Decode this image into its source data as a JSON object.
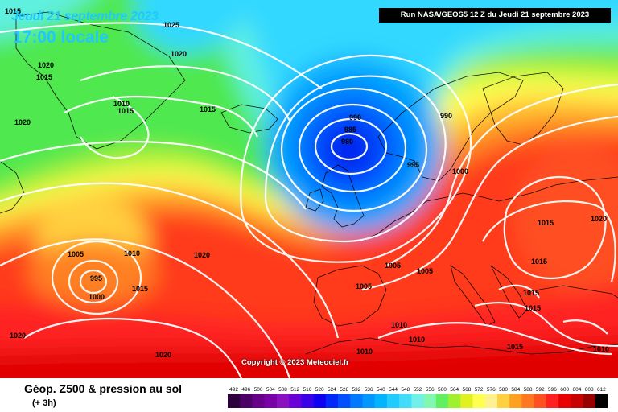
{
  "header": {
    "date": "Jeudi 21 septembre 2023",
    "time": "17:00 locale",
    "run": "Run NASA/GEOS5 12 Z du Jeudi 21 septembre 2023"
  },
  "copyright": "Copyright © 2023 Meteociel.fr",
  "legend": {
    "title": "Géop. Z500 & pression au sol",
    "subtitle": "(+ 3h)",
    "scale_values": [
      "492",
      "496",
      "500",
      "504",
      "508",
      "512",
      "516",
      "520",
      "524",
      "528",
      "532",
      "536",
      "540",
      "544",
      "548",
      "552",
      "556",
      "560",
      "564",
      "568",
      "572",
      "576",
      "580",
      "584",
      "588",
      "592",
      "596",
      "600",
      "604",
      "608",
      "612"
    ],
    "scale_colors": [
      "#2e003e",
      "#4b0066",
      "#66008a",
      "#7a00a8",
      "#8a10c0",
      "#6a00d8",
      "#3a00e8",
      "#1000f0",
      "#0028f8",
      "#0050ff",
      "#0078ff",
      "#0098ff",
      "#00b4ff",
      "#20ccff",
      "#40dcf8",
      "#70f0e8",
      "#80f8b0",
      "#60f060",
      "#a0f030",
      "#e0f020",
      "#ffff50",
      "#fff090",
      "#ffd040",
      "#ffa020",
      "#ff7820",
      "#ff5020",
      "#ff2020",
      "#e80000",
      "#c80000",
      "#980000",
      "#000000"
    ]
  },
  "isobar_labels": [
    {
      "text": "1015"
    },
    {
      "text": "1025"
    },
    {
      "text": "1020"
    },
    {
      "text": "1020"
    },
    {
      "text": "1015"
    },
    {
      "text": "1020"
    },
    {
      "text": "1010"
    },
    {
      "text": "1015"
    },
    {
      "text": "1015"
    },
    {
      "text": "990"
    },
    {
      "text": "985"
    },
    {
      "text": "980"
    },
    {
      "text": "990"
    },
    {
      "text": "995"
    },
    {
      "text": "1000"
    },
    {
      "text": "1005"
    },
    {
      "text": "1010"
    },
    {
      "text": "1020"
    },
    {
      "text": "995"
    },
    {
      "text": "1000"
    },
    {
      "text": "1015"
    },
    {
      "text": "1005"
    },
    {
      "text": "1005"
    },
    {
      "text": "1005"
    },
    {
      "text": "1015"
    },
    {
      "text": "1015"
    },
    {
      "text": "1020"
    },
    {
      "text": "1015"
    },
    {
      "text": "1015"
    },
    {
      "text": "1010"
    },
    {
      "text": "1010"
    },
    {
      "text": "1010"
    },
    {
      "text": "1015"
    },
    {
      "text": "1010"
    },
    {
      "text": "1020"
    },
    {
      "text": "1020"
    }
  ]
}
